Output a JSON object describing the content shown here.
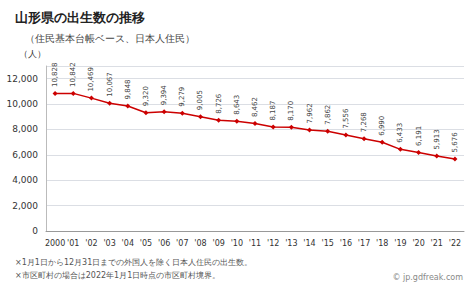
{
  "chart_data": {
    "type": "line",
    "title": "山形県の出生数の推移",
    "subtitle": "（住民基本台帳ベース、日本人住民）",
    "ylabel": "（人）",
    "categories": [
      "2000",
      "'01",
      "'02",
      "'03",
      "'04",
      "'05",
      "'06",
      "'07",
      "'08",
      "'09",
      "'10",
      "'11",
      "'12",
      "'13",
      "'14",
      "'15",
      "'16",
      "'17",
      "'18",
      "'19",
      "'20",
      "'21",
      "'22"
    ],
    "values": [
      10828,
      10842,
      10469,
      10067,
      9848,
      9320,
      9394,
      9279,
      9005,
      8726,
      8643,
      8462,
      8187,
      8170,
      7962,
      7862,
      7556,
      7268,
      6990,
      6433,
      6191,
      5913,
      5676
    ],
    "value_labels": [
      "10,828",
      "10,842",
      "10,469",
      "10,067",
      "9,848",
      "9,320",
      "9,394",
      "9,279",
      "9,005",
      "8,726",
      "8,643",
      "8,462",
      "8,187",
      "8,170",
      "7,962",
      "7,862",
      "7,556",
      "7,268",
      "6,990",
      "6,433",
      "6,191",
      "5,913",
      "5,676"
    ],
    "data_labels": true,
    "color": "#cc0000",
    "marker": "diamond",
    "ylim": [
      0,
      13000
    ],
    "yticks": [
      0,
      {
        "value": 2000,
        "label": "2,000"
      },
      {
        "value": 4000,
        "label": "4,000"
      },
      {
        "value": 6000,
        "label": "6,000"
      },
      {
        "value": 8000,
        "label": "8,000"
      },
      {
        "value": 10000,
        "label": "10,000"
      },
      {
        "value": 12000,
        "label": "12,000"
      }
    ],
    "grid": true,
    "annotations": [
      "×1月1日から12月31日までの外国人を除く日本人住民の出生数。",
      "×市区町村の場合は2022年1月1日時点の市区町村境界。",
      "© jp.gdfreak.com"
    ]
  }
}
